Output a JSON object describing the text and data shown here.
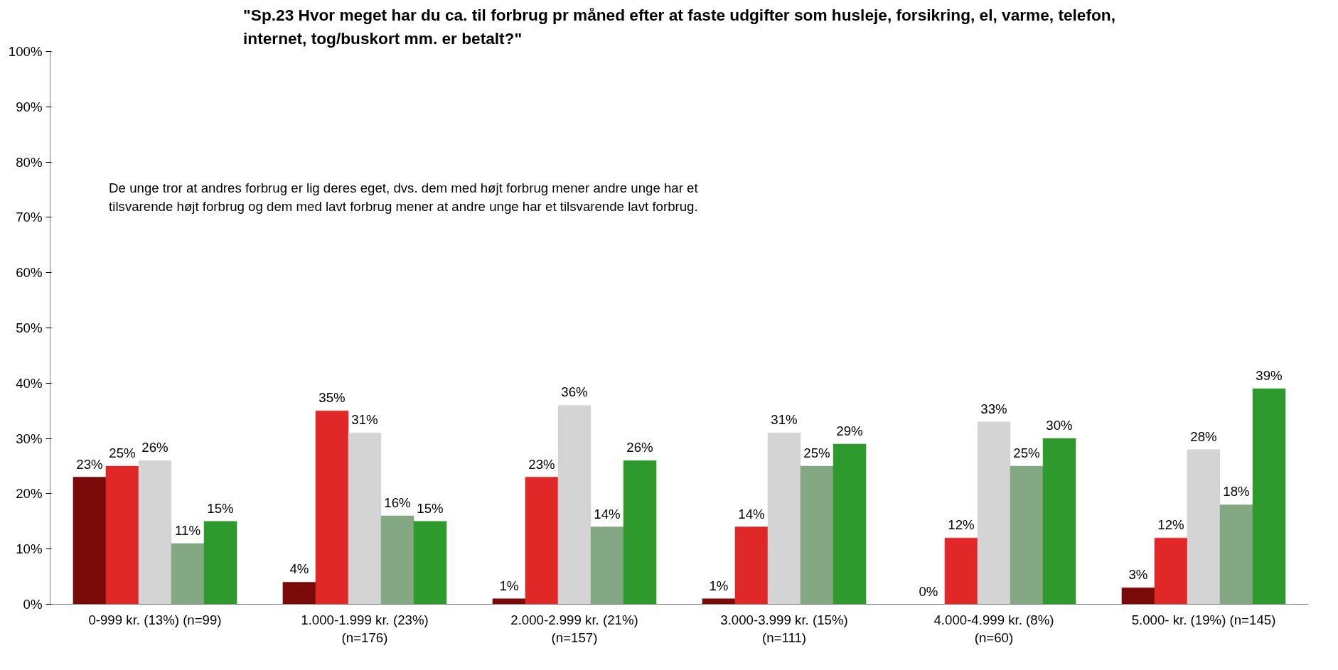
{
  "chart_data": {
    "type": "bar",
    "title": "\"Sp.23 Hvor meget har du ca. til forbrug pr måned efter at faste udgifter som husleje, forsikring, el, varme, telefon, internet, tog/buskort mm. er betalt?\"",
    "categories": [
      "0-999 kr. (13%) (n=99)",
      "1.000-1.999 kr. (23%) (n=176)",
      "2.000-2.999 kr. (21%) (n=157)",
      "3.000-3.999 kr. (15%) (n=111)",
      "4.000-4.999 kr. (8%) (n=60)",
      "5.000- kr. (19%) (n=145)"
    ],
    "series": [
      {
        "color": "#7a0a0a",
        "values": [
          23,
          4,
          1,
          1,
          0,
          3
        ],
        "value_labels": [
          "23%",
          "4%",
          "1%",
          "1%",
          "0%",
          "3%"
        ]
      },
      {
        "color": "#e02828",
        "values": [
          25,
          35,
          23,
          14,
          12,
          12
        ],
        "value_labels": [
          "25%",
          "35%",
          "23%",
          "14%",
          "12%",
          "12%"
        ]
      },
      {
        "color": "#d4d4d4",
        "values": [
          26,
          31,
          36,
          31,
          33,
          28
        ],
        "value_labels": [
          "26%",
          "31%",
          "36%",
          "31%",
          "33%",
          "28%"
        ]
      },
      {
        "color": "#84a884",
        "values": [
          11,
          16,
          14,
          25,
          25,
          18
        ],
        "value_labels": [
          "11%",
          "16%",
          "14%",
          "25%",
          "25%",
          "18%"
        ]
      },
      {
        "color": "#2e9a2e",
        "values": [
          15,
          15,
          26,
          29,
          30,
          39
        ],
        "value_labels": [
          "15%",
          "15%",
          "26%",
          "29%",
          "30%",
          "39%"
        ]
      }
    ],
    "ylim": [
      0,
      100
    ],
    "yticks": [
      {
        "value": 0,
        "label": "0%"
      },
      {
        "value": 10,
        "label": "10%"
      },
      {
        "value": 20,
        "label": "20%"
      },
      {
        "value": 30,
        "label": "30%"
      },
      {
        "value": 40,
        "label": "40%"
      },
      {
        "value": 50,
        "label": "50%"
      },
      {
        "value": 60,
        "label": "60%"
      },
      {
        "value": 70,
        "label": "70%"
      },
      {
        "value": 80,
        "label": "80%"
      },
      {
        "value": 90,
        "label": "90%"
      },
      {
        "value": 100,
        "label": "100%"
      }
    ],
    "grid": false,
    "annotations": [
      "De unge tror at andres forbrug er lig deres eget, dvs. dem med højt forbrug mener andre unge har et tilsvarende højt forbrug og dem med lavt forbrug mener at andre unge har et tilsvarende lavt forbrug."
    ]
  }
}
